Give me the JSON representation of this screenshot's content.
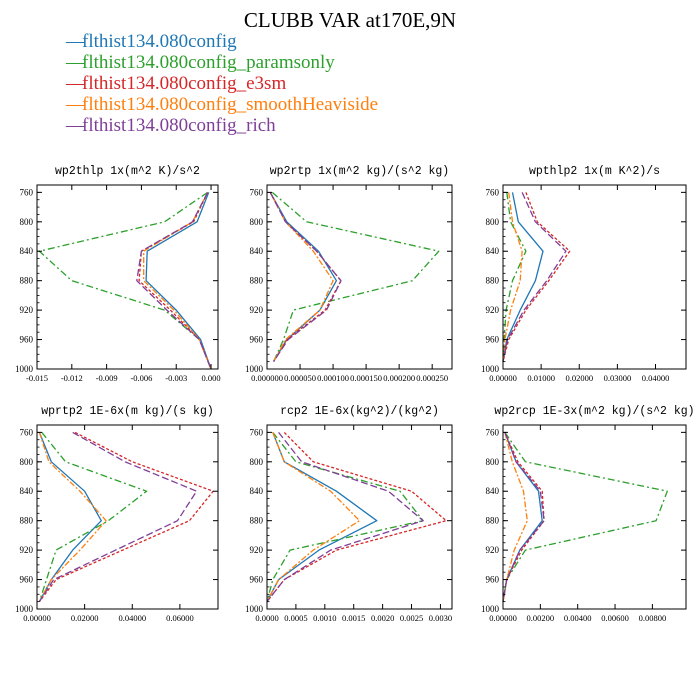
{
  "title": "CLUBB VAR at170E,9N",
  "legend": [
    {
      "label": "flthist134.080config",
      "color": "#1f77b4"
    },
    {
      "label": "flthist134.080config_paramsonly",
      "color": "#2ca02c"
    },
    {
      "label": "flthist134.080config_e3sm",
      "color": "#d62728"
    },
    {
      "label": "flthist134.080config_smoothHeaviside",
      "color": "#ff7f0e"
    },
    {
      "label": "flthist134.080config_rich",
      "color": "#7f3f98"
    }
  ],
  "chart_data": [
    {
      "type": "line",
      "panel_title": "wp2thlp  1x(m^2 K)/s^2",
      "xlim": [
        -0.015,
        0.0006
      ],
      "ylim": [
        1000,
        750
      ],
      "inverted_y": true,
      "xticks": [
        -0.015,
        -0.012,
        -0.009,
        -0.006,
        -0.003,
        0.0
      ],
      "xtick_labels": [
        "-0.015",
        "-0.012",
        "-0.009",
        "-0.006",
        "-0.003",
        "0.000"
      ],
      "yticks": [
        760,
        800,
        840,
        880,
        920,
        960,
        1000
      ],
      "y": [
        760,
        800,
        840,
        880,
        920,
        960,
        1000
      ],
      "series": [
        {
          "color": "#1f77b4",
          "values": [
            -0.0002,
            -0.0012,
            -0.0055,
            -0.0056,
            -0.003,
            -0.0009,
            0.0
          ]
        },
        {
          "color": "#2ca02c",
          "values": [
            -0.0003,
            -0.004,
            -0.0148,
            -0.012,
            -0.004,
            -0.001,
            0.0
          ]
        },
        {
          "color": "#d62728",
          "values": [
            -0.0003,
            -0.0015,
            -0.006,
            -0.0062,
            -0.0035,
            -0.001,
            0.0
          ]
        },
        {
          "color": "#ff7f0e",
          "values": [
            -0.0003,
            -0.0016,
            -0.0058,
            -0.0058,
            -0.0032,
            -0.001,
            0.0
          ]
        },
        {
          "color": "#7f3f98",
          "values": [
            -0.0003,
            -0.0016,
            -0.006,
            -0.0064,
            -0.0038,
            -0.001,
            0.0
          ]
        }
      ]
    },
    {
      "type": "line",
      "panel_title": "wp2rtp  1x(m^2 kg)/(s^2 kg)",
      "xlim": [
        0.0,
        0.00028
      ],
      "ylim": [
        1000,
        750
      ],
      "inverted_y": true,
      "xticks": [
        0.0,
        5e-05,
        0.0001,
        0.00015,
        0.0002,
        0.00025
      ],
      "xtick_labels": [
        "0.000000",
        "0.000050",
        "0.000100",
        "0.000150",
        "0.000200",
        "0.000250"
      ],
      "yticks": [
        760,
        800,
        840,
        880,
        920,
        960,
        1000
      ],
      "y": [
        760,
        800,
        840,
        880,
        920,
        960,
        990
      ],
      "series": [
        {
          "color": "#1f77b4",
          "values": [
            5e-06,
            3e-05,
            7.8e-05,
            0.000105,
            8e-05,
            3e-05,
            1e-05
          ]
        },
        {
          "color": "#2ca02c",
          "values": [
            8e-06,
            6e-05,
            0.00026,
            0.00022,
            4e-05,
            2.5e-05,
            1e-05
          ]
        },
        {
          "color": "#d62728",
          "values": [
            5e-06,
            2.8e-05,
            7.5e-05,
            0.000112,
            8.8e-05,
            3e-05,
            1e-05
          ]
        },
        {
          "color": "#ff7f0e",
          "values": [
            5e-06,
            2.8e-05,
            7e-05,
            0.0001,
            8e-05,
            2.8e-05,
            1e-05
          ]
        },
        {
          "color": "#7f3f98",
          "values": [
            5e-06,
            2.8e-05,
            7.5e-05,
            0.000112,
            9e-05,
            3.2e-05,
            1e-05
          ]
        }
      ]
    },
    {
      "type": "line",
      "panel_title": "wpthlp2  1x(m K^2)/s",
      "xlim": [
        0.0,
        0.048
      ],
      "ylim": [
        1000,
        750
      ],
      "inverted_y": true,
      "xticks": [
        0.0,
        0.01,
        0.02,
        0.03,
        0.04
      ],
      "xtick_labels": [
        "0.00000",
        "0.01000",
        "0.02000",
        "0.03000",
        "0.04000"
      ],
      "yticks": [
        760,
        800,
        840,
        880,
        920,
        960,
        1000
      ],
      "y": [
        760,
        800,
        840,
        880,
        920,
        960,
        990
      ],
      "series": [
        {
          "color": "#1f77b4",
          "values": [
            0.0025,
            0.004,
            0.0105,
            0.0085,
            0.0045,
            0.001,
            0.0
          ]
        },
        {
          "color": "#2ca02c",
          "values": [
            0.001,
            0.002,
            0.006,
            0.0025,
            0.0008,
            0.0003,
            0.0
          ]
        },
        {
          "color": "#d62728",
          "values": [
            0.006,
            0.009,
            0.0175,
            0.012,
            0.006,
            0.0015,
            0.0
          ]
        },
        {
          "color": "#ff7f0e",
          "values": [
            0.0015,
            0.0025,
            0.005,
            0.0045,
            0.002,
            0.0005,
            0.0
          ]
        },
        {
          "color": "#7f3f98",
          "values": [
            0.005,
            0.0085,
            0.0165,
            0.0115,
            0.0055,
            0.0012,
            0.0
          ]
        }
      ]
    },
    {
      "type": "line",
      "panel_title": "wprtp2  1E-6x(m kg)/(s kg)",
      "xlim": [
        0.0,
        0.076
      ],
      "ylim": [
        1000,
        750
      ],
      "inverted_y": true,
      "xticks": [
        0.0,
        0.02,
        0.04,
        0.06
      ],
      "xtick_labels": [
        "0.00000",
        "0.02000",
        "0.04000",
        "0.06000"
      ],
      "yticks": [
        760,
        800,
        840,
        880,
        920,
        960,
        1000
      ],
      "y": [
        760,
        800,
        840,
        880,
        920,
        960,
        990
      ],
      "series": [
        {
          "color": "#1f77b4",
          "values": [
            0.001,
            0.006,
            0.02,
            0.027,
            0.015,
            0.006,
            0.001
          ]
        },
        {
          "color": "#2ca02c",
          "values": [
            0.002,
            0.012,
            0.046,
            0.03,
            0.008,
            0.004,
            0.001
          ]
        },
        {
          "color": "#d62728",
          "values": [
            0.016,
            0.04,
            0.074,
            0.064,
            0.036,
            0.008,
            0.001
          ]
        },
        {
          "color": "#ff7f0e",
          "values": [
            0.001,
            0.005,
            0.018,
            0.029,
            0.018,
            0.006,
            0.001
          ]
        },
        {
          "color": "#7f3f98",
          "values": [
            0.015,
            0.037,
            0.067,
            0.059,
            0.033,
            0.007,
            0.001
          ]
        }
      ]
    },
    {
      "type": "line",
      "panel_title": "rcp2  1E-6x(kg^2)/(kg^2)",
      "xlim": [
        0.0,
        0.0032
      ],
      "ylim": [
        1000,
        750
      ],
      "inverted_y": true,
      "xticks": [
        0.0,
        0.0005,
        0.001,
        0.0015,
        0.002,
        0.0025,
        0.003
      ],
      "xtick_labels": [
        "0.0000",
        "0.0005",
        "0.0010",
        "0.0015",
        "0.0020",
        "0.0025",
        "0.0030"
      ],
      "yticks": [
        760,
        800,
        840,
        880,
        920,
        960,
        1000
      ],
      "y": [
        760,
        800,
        840,
        880,
        920,
        960,
        990
      ],
      "series": [
        {
          "color": "#1f77b4",
          "values": [
            0.0001,
            0.0003,
            0.0012,
            0.0019,
            0.0009,
            0.0002,
            0.0
          ]
        },
        {
          "color": "#2ca02c",
          "values": [
            0.0001,
            0.0005,
            0.0023,
            0.0027,
            0.0004,
            0.0001,
            0.0
          ]
        },
        {
          "color": "#d62728",
          "values": [
            0.0003,
            0.0008,
            0.0025,
            0.0031,
            0.0012,
            0.0003,
            0.0
          ]
        },
        {
          "color": "#ff7f0e",
          "values": [
            0.0001,
            0.0003,
            0.0011,
            0.0016,
            0.0008,
            0.0002,
            0.0
          ]
        },
        {
          "color": "#7f3f98",
          "values": [
            0.0002,
            0.0006,
            0.0021,
            0.0027,
            0.0011,
            0.0003,
            0.0
          ]
        }
      ]
    },
    {
      "type": "line",
      "panel_title": "wp2rcp  1E-3x(m^2 kg)/(s^2 kg)",
      "xlim": [
        0.0,
        0.0098
      ],
      "ylim": [
        1000,
        750
      ],
      "inverted_y": true,
      "xticks": [
        0.0,
        0.002,
        0.004,
        0.006,
        0.008
      ],
      "xtick_labels": [
        "0.00000",
        "0.00200",
        "0.00400",
        "0.00600",
        "0.00800"
      ],
      "yticks": [
        760,
        800,
        840,
        880,
        920,
        960,
        1000
      ],
      "y": [
        760,
        800,
        840,
        880,
        920,
        960,
        990
      ],
      "series": [
        {
          "color": "#1f77b4",
          "values": [
            0.0001,
            0.0007,
            0.0019,
            0.0021,
            0.0009,
            0.0002,
            0.0
          ]
        },
        {
          "color": "#2ca02c",
          "values": [
            0.0001,
            0.0012,
            0.0088,
            0.0082,
            0.0012,
            0.0002,
            0.0
          ]
        },
        {
          "color": "#d62728",
          "values": [
            0.0001,
            0.0008,
            0.0021,
            0.0022,
            0.001,
            0.0002,
            0.0
          ]
        },
        {
          "color": "#ff7f0e",
          "values": [
            0.0001,
            0.0005,
            0.0011,
            0.0013,
            0.0006,
            0.0002,
            0.0
          ]
        },
        {
          "color": "#7f3f98",
          "values": [
            0.0001,
            0.0007,
            0.002,
            0.0022,
            0.0009,
            0.0002,
            0.0
          ]
        }
      ]
    }
  ]
}
